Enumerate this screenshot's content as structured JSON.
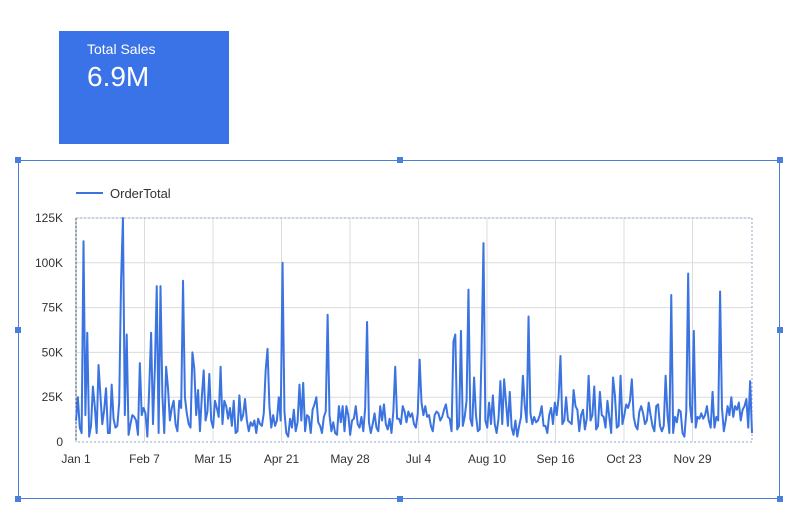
{
  "scorecard": {
    "label": "Total Sales",
    "value": "6.9M",
    "color": "#3a72e8"
  },
  "chart_data": {
    "type": "line",
    "legend": "top-left",
    "grid": true,
    "series": [
      {
        "name": "OrderTotal",
        "color": "#3b73e0",
        "values": [
          12000,
          25000,
          8000,
          5000,
          112000,
          15000,
          61000,
          3000,
          9000,
          31000,
          20000,
          5000,
          43000,
          26000,
          10000,
          18000,
          30000,
          5000,
          5000,
          32000,
          13000,
          8000,
          9000,
          22000,
          90000,
          125000,
          15000,
          60000,
          4000,
          10000,
          15000,
          14000,
          12000,
          4000,
          44000,
          15000,
          19000,
          16000,
          3000,
          30000,
          61000,
          10000,
          41000,
          87000,
          5000,
          87000,
          26000,
          5000,
          42000,
          30000,
          12000,
          19000,
          23000,
          10000,
          6000,
          23000,
          19000,
          90000,
          25000,
          16000,
          10000,
          8000,
          50000,
          41000,
          15000,
          29000,
          6000,
          25000,
          40000,
          12000,
          17000,
          38000,
          12000,
          8000,
          23000,
          19000,
          14000,
          42000,
          10000,
          23000,
          20000,
          13000,
          19000,
          9000,
          23000,
          5000,
          6000,
          26000,
          12000,
          15000,
          24000,
          12000,
          6000,
          11000,
          9000,
          12000,
          5000,
          13000,
          10000,
          9000,
          16000,
          40000,
          52000,
          20000,
          8000,
          15000,
          9000,
          12000,
          25000,
          12000,
          100000,
          17000,
          5000,
          3000,
          13000,
          8000,
          18000,
          6000,
          11000,
          32000,
          12000,
          33000,
          6000,
          15000,
          14000,
          5000,
          18000,
          21000,
          25000,
          11000,
          9000,
          5000,
          14000,
          17000,
          71000,
          15000,
          6000,
          11000,
          5000,
          4000,
          20000,
          11000,
          20000,
          6000,
          20000,
          15000,
          4000,
          12000,
          13000,
          20000,
          10000,
          8000,
          14000,
          6000,
          19000,
          67000,
          11000,
          5000,
          10000,
          16000,
          8000,
          6000,
          20000,
          12000,
          21000,
          10000,
          7000,
          13000,
          5000,
          17000,
          42000,
          13000,
          13000,
          10000,
          20000,
          17000,
          11000,
          17000,
          14000,
          16000,
          10000,
          8000,
          16000,
          46000,
          22000,
          15000,
          20000,
          14000,
          15000,
          9000,
          6000,
          15000,
          17000,
          16000,
          12000,
          14000,
          18000,
          21000,
          14000,
          13000,
          6000,
          56000,
          60000,
          7000,
          9000,
          62000,
          9000,
          14000,
          23000,
          85000,
          13000,
          9000,
          36000,
          15000,
          6000,
          7000,
          50000,
          111000,
          12000,
          8000,
          22000,
          10000,
          26000,
          10000,
          5000,
          13000,
          34000,
          10000,
          35000,
          22000,
          9000,
          28000,
          8000,
          4000,
          12000,
          3000,
          9000,
          14000,
          37000,
          20000,
          11000,
          70000,
          16000,
          10000,
          14000,
          11000,
          12000,
          15000,
          20000,
          9000,
          9000,
          5000,
          15000,
          19000,
          10000,
          22000,
          15000,
          25000,
          48000,
          10000,
          12000,
          25000,
          12000,
          11000,
          10000,
          29000,
          20000,
          18000,
          6000,
          15000,
          18000,
          7000,
          13000,
          37000,
          12000,
          15000,
          31000,
          7000,
          9000,
          28000,
          15000,
          14000,
          8000,
          23000,
          14000,
          5000,
          36000,
          26000,
          8000,
          9000,
          37000,
          10000,
          15000,
          21000,
          19000,
          23000,
          35000,
          14000,
          9000,
          7000,
          17000,
          20000,
          16000,
          10000,
          12000,
          22000,
          15000,
          9000,
          6000,
          20000,
          21000,
          9000,
          6000,
          9000,
          37000,
          15000,
          5000,
          82000,
          5000,
          14000,
          11000,
          18000,
          17000,
          5000,
          3000,
          17000,
          94000,
          20000,
          11000,
          62000,
          8000,
          14000,
          13000,
          16000,
          13000,
          15000,
          20000,
          12000,
          8000,
          28000,
          8000,
          14000,
          12000,
          84000,
          19000,
          6000,
          12000,
          20000,
          15000,
          25000,
          14000,
          20000,
          18000,
          22000,
          12000,
          18000,
          20000,
          24000,
          8000,
          34000,
          5000
        ]
      }
    ],
    "x_ticks": [
      "Jan 1",
      "Feb 7",
      "Mar 15",
      "Apr 21",
      "May 28",
      "Jul 4",
      "Aug 10",
      "Sep 16",
      "Oct 23",
      "Nov 29"
    ],
    "y_ticks": [
      "0",
      "25K",
      "50K",
      "75K",
      "100K",
      "125K"
    ],
    "ylim": [
      0,
      125000
    ]
  }
}
